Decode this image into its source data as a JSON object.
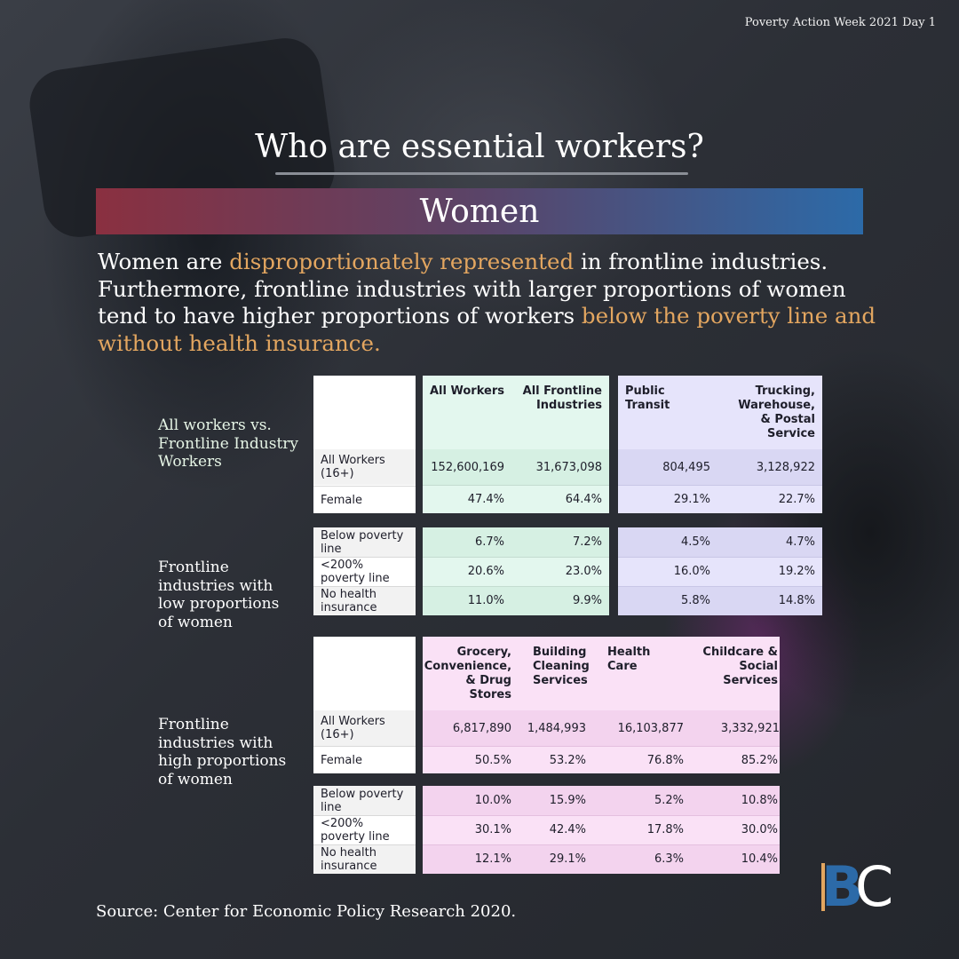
{
  "header_tag": "Poverty Action Week 2021 Day 1",
  "title": "Who are essential workers?",
  "banner": "Women",
  "intro": {
    "p1": "Women are ",
    "h1": "disproportionately represented",
    "p2": " in frontline industries. Furthermore, frontline industries with larger proportions of women tend to have higher proportions of workers ",
    "h2": "below the poverty line and without health insurance."
  },
  "section_labels": {
    "all_vs": "All workers vs. Frontline Industry Workers",
    "low": "Frontline industries with low proportions of women",
    "high": "Frontline industries with high proportions of women"
  },
  "row_labels": {
    "all_workers": "All Workers (16+)",
    "female": "Female",
    "below_poverty": "Below poverty line",
    "below_200": "<200% poverty line",
    "no_health": "No health insurance"
  },
  "table_top": {
    "green_headers": [
      "All Workers",
      "All Frontline Industries"
    ],
    "purple_headers": [
      "Public Transit",
      "Trucking, Warehouse, & Postal Service"
    ],
    "all_workers": [
      "152,600,169",
      "31,673,098",
      "804,495",
      "3,128,922"
    ],
    "female": [
      "47.4%",
      "64.4%",
      "29.1%",
      "22.7%"
    ],
    "below_poverty": [
      "6.7%",
      "7.2%",
      "4.5%",
      "4.7%"
    ],
    "below_200": [
      "20.6%",
      "23.0%",
      "16.0%",
      "19.2%"
    ],
    "no_health": [
      "11.0%",
      "9.9%",
      "5.8%",
      "14.8%"
    ]
  },
  "table_bottom": {
    "headers": [
      "Grocery, Convenience, & Drug Stores",
      "Building Cleaning Services",
      "Health Care",
      "Childcare & Social Services"
    ],
    "all_workers": [
      "6,817,890",
      "1,484,993",
      "16,103,877",
      "3,332,921"
    ],
    "female": [
      "50.5%",
      "53.2%",
      "76.8%",
      "85.2%"
    ],
    "below_poverty": [
      "10.0%",
      "15.9%",
      "5.2%",
      "10.8%"
    ],
    "below_200": [
      "30.1%",
      "42.4%",
      "17.8%",
      "30.0%"
    ],
    "no_health": [
      "12.1%",
      "29.1%",
      "6.3%",
      "10.4%"
    ]
  },
  "brand": {
    "b": "B",
    "c": "C"
  },
  "source": "Source: Center for Economic Policy Research 2020.",
  "colors": {
    "highlight": "#e3a660",
    "banner_left": "#8a3040",
    "banner_right": "#2c6aa8",
    "green_fill": "#e3f7ee",
    "purple_fill": "#e6e4fb",
    "pink_fill": "#fae1f6"
  }
}
